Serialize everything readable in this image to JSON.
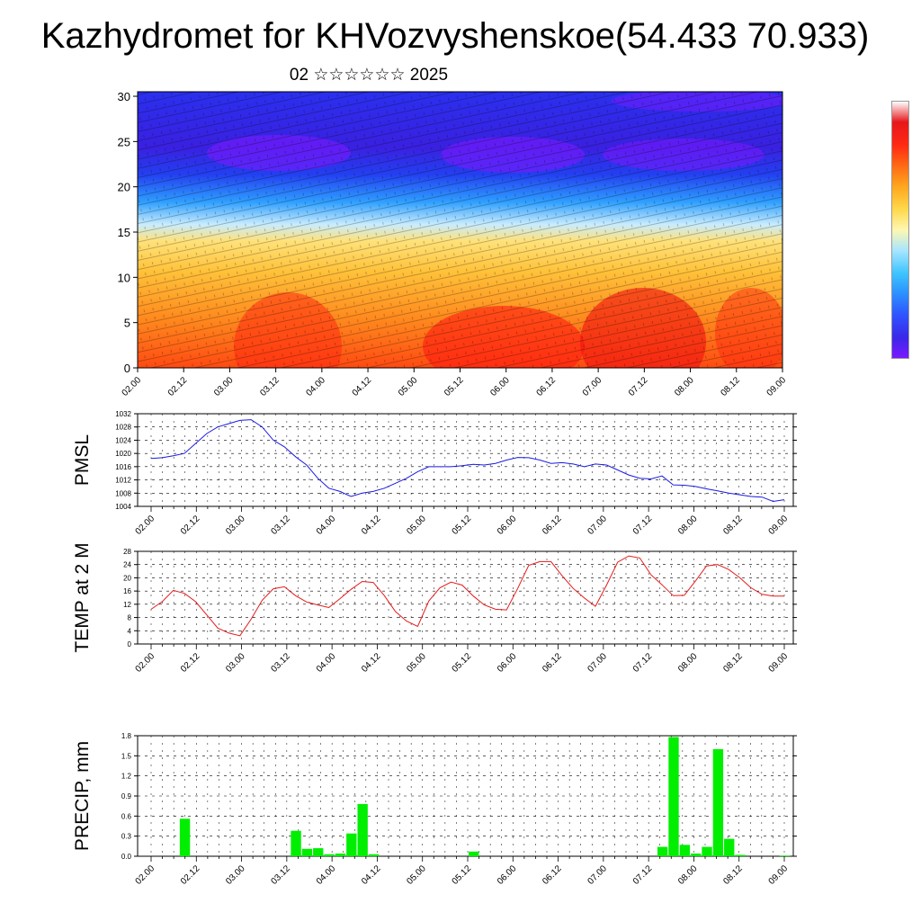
{
  "header": {
    "title": "Kazhydromet for KHVozvyshenskoe(54.433 70.933)",
    "subtitle": "02 ☆☆☆☆☆☆ 2025"
  },
  "colors": {
    "pressure_line": "#1a1ae6",
    "temperature_line": "#e61a1a",
    "precip_bar": "#00ee00",
    "colorbar": [
      "#7a1aff",
      "#3a28e8",
      "#2f55ff",
      "#2b8fff",
      "#3ec4ff",
      "#a8e6ff",
      "#fff7b0",
      "#ffd84a",
      "#ffa51e",
      "#ff6a14",
      "#ff2a14",
      "#e6171a",
      "#ffffff"
    ]
  },
  "chart_data": [
    {
      "type": "heatmap",
      "title": "",
      "y_ticks": [
        "0",
        "5",
        "10",
        "15",
        "20",
        "25",
        "30"
      ],
      "ylim": [
        0,
        30.5
      ],
      "x_ticks": [
        "02.00",
        "02.12",
        "03.00",
        "03.12",
        "04.00",
        "04.12",
        "05.00",
        "05.12",
        "06.00",
        "06.12",
        "07.00",
        "07.12",
        "08.00",
        "08.12",
        "09.00"
      ],
      "overlay": "wind barbs",
      "colorbar": "vertical, right, no tick labels"
    },
    {
      "type": "line",
      "ylabel": "PMSL",
      "ylim": [
        1004,
        1032
      ],
      "y_ticks": [
        "1004",
        "1008",
        "1012",
        "1016",
        "1020",
        "1024",
        "1028",
        "1032"
      ],
      "x_ticks": [
        "02.00",
        "02.12",
        "03.00",
        "03.12",
        "04.00",
        "04.12",
        "05.00",
        "05.12",
        "06.00",
        "06.12",
        "07.00",
        "07.12",
        "08.00",
        "08.12",
        "09.00"
      ],
      "grid": true,
      "series": [
        {
          "values": [
            1018.5,
            1018.7,
            1019.3,
            1020.0,
            1023.0,
            1026.0,
            1028.0,
            1029.0,
            1030.0,
            1030.2,
            1028.0,
            1024.0,
            1022.0,
            1019.0,
            1016.5,
            1012.5,
            1009.5,
            1008.5,
            1007.0,
            1008.0,
            1008.5,
            1009.5,
            1011.0,
            1012.5,
            1014.5,
            1016.0,
            1016.0,
            1016.0,
            1016.3,
            1016.7,
            1016.5,
            1017.0,
            1018.0,
            1018.8,
            1018.7,
            1018.0,
            1017.0,
            1017.2,
            1016.8,
            1016.0,
            1016.8,
            1016.5,
            1015.0,
            1013.5,
            1012.5,
            1012.3,
            1013.2,
            1010.5,
            1010.4,
            1010.0,
            1009.3,
            1008.7,
            1008.0,
            1007.5,
            1007.0,
            1006.8,
            1005.5,
            1006.0
          ]
        }
      ]
    },
    {
      "type": "line",
      "ylabel": "TEMP at 2 M",
      "ylim": [
        0,
        28
      ],
      "y_ticks": [
        "0",
        "4",
        "8",
        "12",
        "16",
        "20",
        "24",
        "28"
      ],
      "x_ticks": [
        "02.00",
        "02.12",
        "03.00",
        "03.12",
        "04.00",
        "04.12",
        "05.00",
        "05.12",
        "06.00",
        "06.12",
        "07.00",
        "07.12",
        "08.00",
        "08.12",
        "09.00"
      ],
      "grid": true,
      "series": [
        {
          "values": [
            10.5,
            12.8,
            16.2,
            15.3,
            12.8,
            8.8,
            4.8,
            3.3,
            2.5,
            7.5,
            13.2,
            16.7,
            17.3,
            14.6,
            12.7,
            11.8,
            11.0,
            13.7,
            16.5,
            18.9,
            18.6,
            14.6,
            9.8,
            6.9,
            5.3,
            13.0,
            17.0,
            18.7,
            17.8,
            14.5,
            11.8,
            10.5,
            10.3,
            16.8,
            23.8,
            24.9,
            24.9,
            20.6,
            16.8,
            13.9,
            11.4,
            17.8,
            24.7,
            26.6,
            26.0,
            20.9,
            17.9,
            14.6,
            14.7,
            19.0,
            23.6,
            24.0,
            22.5,
            20.0,
            17.0,
            15.0,
            14.5,
            14.5
          ]
        }
      ]
    },
    {
      "type": "bar",
      "ylabel": "PRECIP, mm",
      "ylim": [
        0,
        1.8
      ],
      "y_ticks": [
        "0.0",
        "0.3",
        "0.6",
        "0.9",
        "1.2",
        "1.5",
        "1.8"
      ],
      "x_ticks": [
        "02.00",
        "02.12",
        "03.00",
        "03.12",
        "04.00",
        "04.12",
        "05.00",
        "05.12",
        "06.00",
        "06.12",
        "07.00",
        "07.12",
        "08.00",
        "08.12",
        "09.00"
      ],
      "grid": true,
      "series": [
        {
          "values": [
            0,
            0,
            0,
            0.56,
            0,
            0,
            0,
            0,
            0,
            0,
            0,
            0,
            0,
            0.38,
            0.11,
            0.12,
            0.03,
            0.04,
            0.34,
            0.78,
            0.03,
            0,
            0,
            0,
            0,
            0,
            0,
            0,
            0,
            0.07,
            0,
            0,
            0,
            0,
            0,
            0,
            0,
            0,
            0,
            0,
            0,
            0,
            0,
            0,
            0,
            0,
            0.14,
            1.78,
            0.17,
            0.04,
            0.14,
            1.6,
            0.26,
            0.02,
            0,
            0,
            0,
            0.01
          ]
        }
      ]
    }
  ]
}
